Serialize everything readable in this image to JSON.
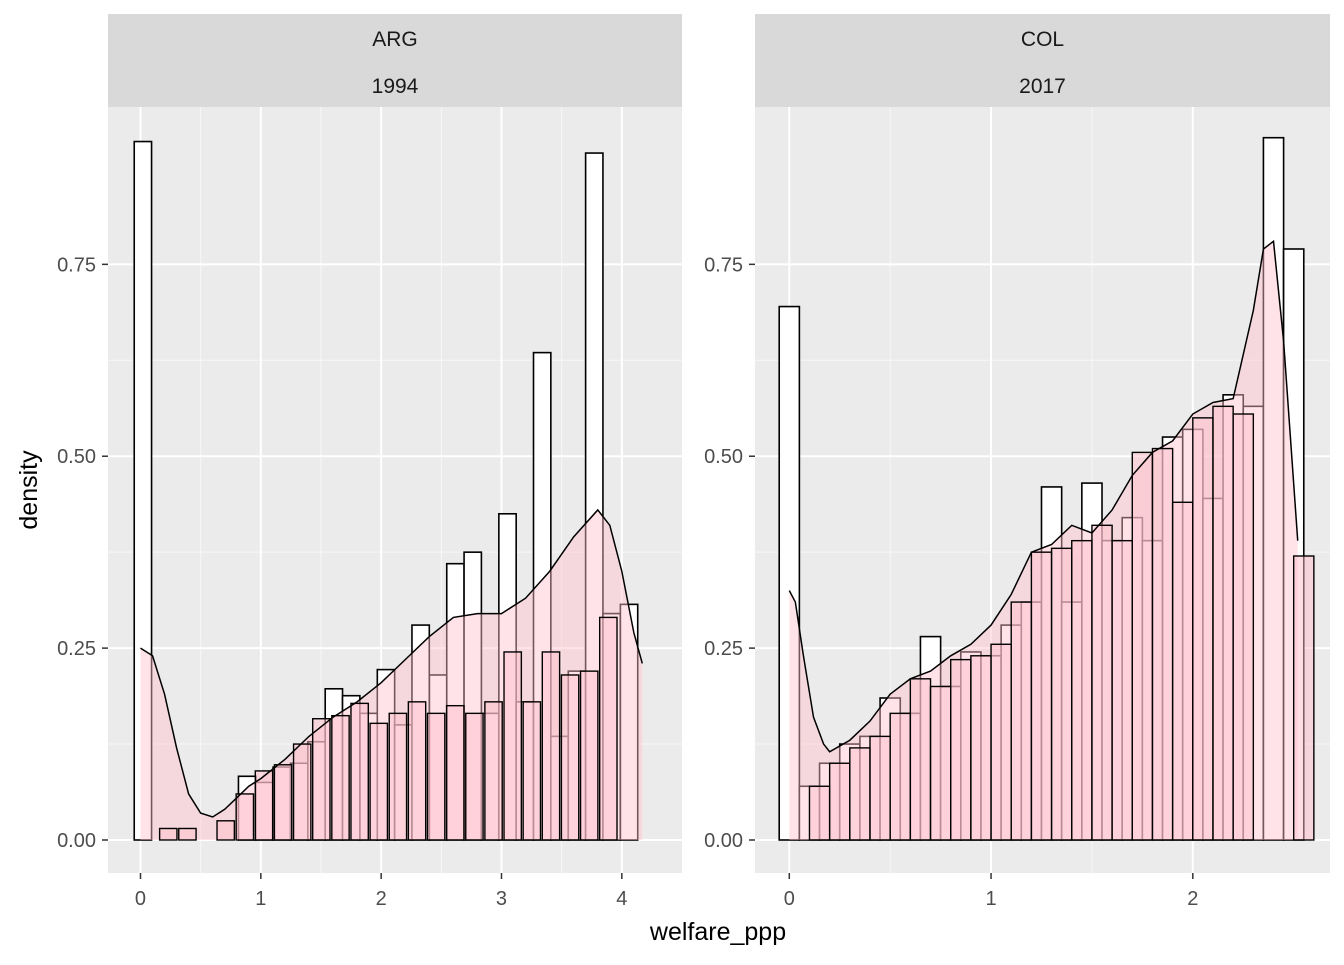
{
  "chart_data": {
    "type": "bar",
    "xlabel": "welfare_ppp",
    "ylabel": "density",
    "grid": true,
    "panels": [
      {
        "strip": [
          "ARG",
          "1994"
        ],
        "xlim": [
          -0.27,
          4.5
        ],
        "ylim": [
          -0.043,
          0.955
        ],
        "xticks": [
          0,
          1,
          2,
          3,
          4
        ],
        "yticks": [
          0.0,
          0.25,
          0.5,
          0.75
        ],
        "ytick_labels": [
          "0.00",
          "0.25",
          "0.50",
          "0.75"
        ],
        "bin_width": 0.144,
        "hist_1_left_edges": [
          -0.052,
          0.092,
          0.237,
          0.381,
          0.525,
          0.669,
          0.814,
          0.958,
          1.102,
          1.247,
          1.391,
          1.535,
          1.679,
          1.824,
          1.968,
          2.112,
          2.256,
          2.401,
          2.545,
          2.689,
          2.833,
          2.978,
          3.122,
          3.266,
          3.41,
          3.555,
          3.699,
          3.843,
          3.988
        ],
        "hist_1_density": [
          0.91,
          0.0,
          0.0,
          0.0,
          0.0,
          0.0,
          0.083,
          0.075,
          0.095,
          0.1,
          0.128,
          0.197,
          0.188,
          0.165,
          0.222,
          0.15,
          0.28,
          0.215,
          0.36,
          0.375,
          0.165,
          0.425,
          0.18,
          0.635,
          0.135,
          0.22,
          0.895,
          0.295,
          0.307
        ],
        "hist_2_left_edges": [
          0.0,
          0.159,
          0.318,
          0.477,
          0.636,
          0.795,
          0.954,
          1.113,
          1.272,
          1.431,
          1.59,
          1.749,
          1.908,
          2.067,
          2.226,
          2.385,
          2.544,
          2.703,
          2.862,
          3.021,
          3.18,
          3.339,
          3.498,
          3.657,
          3.816,
          3.975
        ],
        "hist_2_density": [
          0.0,
          0.015,
          0.015,
          0.0,
          0.025,
          0.06,
          0.09,
          0.098,
          0.125,
          0.158,
          0.162,
          0.178,
          0.152,
          0.165,
          0.18,
          0.165,
          0.175,
          0.165,
          0.18,
          0.245,
          0.18,
          0.245,
          0.215,
          0.22,
          0.29,
          0.0
        ],
        "density_x": [
          0.0,
          0.1,
          0.2,
          0.3,
          0.4,
          0.5,
          0.6,
          0.7,
          0.8,
          0.9,
          1.0,
          1.2,
          1.4,
          1.6,
          1.8,
          2.0,
          2.2,
          2.4,
          2.6,
          2.8,
          3.0,
          3.2,
          3.4,
          3.6,
          3.8,
          3.9,
          4.0,
          4.1,
          4.17
        ],
        "density_y": [
          0.25,
          0.24,
          0.19,
          0.12,
          0.06,
          0.035,
          0.03,
          0.04,
          0.055,
          0.07,
          0.08,
          0.105,
          0.135,
          0.16,
          0.18,
          0.205,
          0.235,
          0.265,
          0.29,
          0.295,
          0.295,
          0.315,
          0.35,
          0.395,
          0.43,
          0.41,
          0.35,
          0.27,
          0.23
        ]
      },
      {
        "strip": [
          "COL",
          "2017"
        ],
        "xlim": [
          -0.17,
          2.68
        ],
        "ylim": [
          -0.043,
          0.955
        ],
        "xticks": [
          0,
          1,
          2
        ],
        "yticks": [
          0.0,
          0.25,
          0.5,
          0.75
        ],
        "ytick_labels": [
          "0.00",
          "0.25",
          "0.50",
          "0.75"
        ],
        "bin_width": 0.1,
        "hist_1_left_edges": [
          -0.05,
          0.05,
          0.15,
          0.25,
          0.35,
          0.45,
          0.55,
          0.65,
          0.75,
          0.85,
          0.95,
          1.05,
          1.15,
          1.25,
          1.35,
          1.45,
          1.55,
          1.65,
          1.75,
          1.85,
          1.95,
          2.05,
          2.15,
          2.25,
          2.35,
          2.45
        ],
        "hist_1_density": [
          0.695,
          0.07,
          0.1,
          0.125,
          0.135,
          0.185,
          0.165,
          0.265,
          0.2,
          0.245,
          0.24,
          0.28,
          0.31,
          0.46,
          0.31,
          0.465,
          0.39,
          0.42,
          0.39,
          0.525,
          0.535,
          0.445,
          0.58,
          0.565,
          0.915,
          0.77
        ],
        "hist_2_left_edges": [
          0.0,
          0.1,
          0.2,
          0.3,
          0.4,
          0.5,
          0.6,
          0.7,
          0.8,
          0.9,
          1.0,
          1.1,
          1.2,
          1.3,
          1.4,
          1.5,
          1.6,
          1.7,
          1.8,
          1.9,
          2.0,
          2.1,
          2.2,
          2.3,
          2.4,
          2.5
        ],
        "hist_2_density": [
          0.0,
          0.07,
          0.1,
          0.12,
          0.135,
          0.165,
          0.21,
          0.2,
          0.235,
          0.24,
          0.255,
          0.31,
          0.375,
          0.38,
          0.39,
          0.41,
          0.39,
          0.505,
          0.51,
          0.44,
          0.55,
          0.565,
          0.555,
          0.0,
          0.0,
          0.37
        ],
        "density_x": [
          0.0,
          0.03,
          0.07,
          0.12,
          0.17,
          0.2,
          0.3,
          0.4,
          0.5,
          0.6,
          0.7,
          0.8,
          0.9,
          1.0,
          1.1,
          1.2,
          1.3,
          1.4,
          1.5,
          1.6,
          1.7,
          1.8,
          1.9,
          2.0,
          2.1,
          2.2,
          2.3,
          2.35,
          2.4,
          2.45,
          2.52
        ],
        "density_y": [
          0.325,
          0.31,
          0.24,
          0.16,
          0.125,
          0.115,
          0.13,
          0.155,
          0.19,
          0.21,
          0.22,
          0.24,
          0.255,
          0.28,
          0.32,
          0.375,
          0.385,
          0.41,
          0.4,
          0.43,
          0.475,
          0.505,
          0.52,
          0.555,
          0.57,
          0.575,
          0.69,
          0.77,
          0.78,
          0.65,
          0.39
        ]
      }
    ]
  },
  "colors": {
    "panel_background": "#EBEBEB",
    "strip_background": "#D9D9D9",
    "grid_major": "#FFFFFF",
    "grid_minor": "#F7F7F7",
    "bar_fill": "#FFFFFF",
    "bar_outline": "#000000",
    "density_fill": "#FFC0CB",
    "density_line": "#000000"
  }
}
